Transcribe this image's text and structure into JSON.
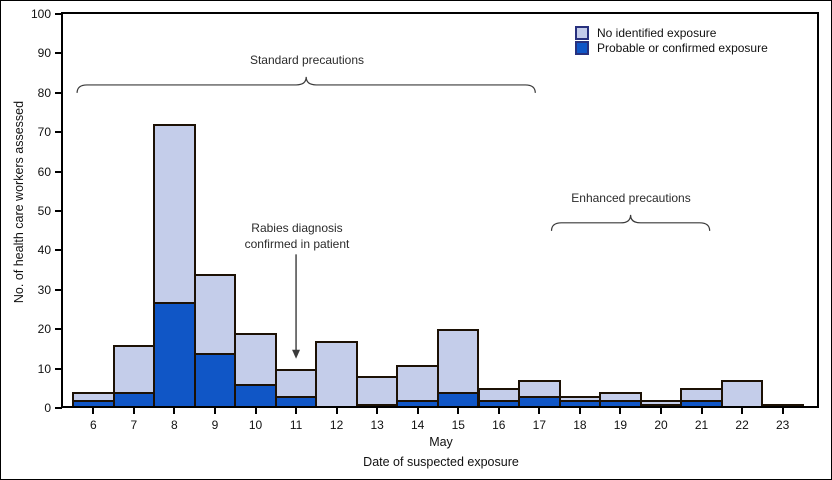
{
  "chart_data": {
    "type": "bar",
    "stacked": true,
    "title": "",
    "xlabel": "Date of suspected exposure",
    "month_label": "May",
    "ylabel": "No. of health care workers assessed",
    "ylim": [
      0,
      100
    ],
    "ytick_interval": 10,
    "grid": false,
    "legend_position": "top-right",
    "categories": [
      "6",
      "7",
      "8",
      "9",
      "10",
      "11",
      "12",
      "13",
      "14",
      "15",
      "16",
      "17",
      "18",
      "19",
      "20",
      "21",
      "22",
      "23"
    ],
    "series": [
      {
        "name": "No identified exposure",
        "stack_position": "top",
        "color": "#c4cdea",
        "values": [
          2,
          12,
          45,
          20,
          13,
          7,
          17,
          7,
          9,
          16,
          3,
          4,
          1,
          2,
          1,
          3,
          7,
          1
        ]
      },
      {
        "name": "Probable or confirmed exposure",
        "stack_position": "bottom",
        "color": "#1056c6",
        "values": [
          2,
          4,
          27,
          14,
          6,
          3,
          0,
          1,
          2,
          4,
          2,
          3,
          2,
          2,
          1,
          2,
          0,
          0
        ]
      }
    ],
    "stack_totals": [
      4,
      16,
      72,
      34,
      19,
      10,
      17,
      8,
      11,
      20,
      5,
      7,
      3,
      4,
      2,
      5,
      7,
      1
    ],
    "annotations": {
      "braces": [
        {
          "label": "Standard precautions",
          "from_date": 5.6,
          "to_date": 16.9,
          "y_value": 82
        },
        {
          "label": "Enhanced precautions",
          "from_date": 17.3,
          "to_date": 21.2,
          "y_value": 47
        }
      ],
      "arrow_note": {
        "lines": [
          "Rabies diagnosis",
          "confirmed in patient"
        ],
        "target_date": 11,
        "arrow_top_value": 39,
        "arrow_tip_value": 12.5
      }
    }
  },
  "colors": {
    "background": "#ffffff",
    "bar_border": "#1c1105",
    "axis": "#000000",
    "tick_text": "#111111",
    "annotation_text": "#2b2b2b",
    "annotation_line": "#3a3a3a",
    "legend_swatch_border": "#28317e",
    "light_fill": "#c4cdea",
    "dark_fill": "#1056c6"
  }
}
